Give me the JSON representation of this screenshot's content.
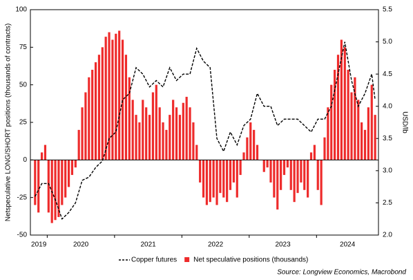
{
  "chart_data": {
    "type": "bar",
    "y_label": "Netspeculative LONG/SHORT positions (thousands of contracts)",
    "y2_label": "USD/lb",
    "source": "Source: Longview Economics, Macrobond",
    "xlim": [
      2019.75,
      2024.92
    ],
    "xticks": [
      2019,
      2020,
      2021,
      2022,
      2023,
      2024
    ],
    "ylim": [
      -50,
      100
    ],
    "yticks": [
      -50,
      -25,
      0,
      25,
      50,
      75,
      100
    ],
    "y2lim": [
      2.0,
      5.5
    ],
    "y2ticks": [
      {
        "value": 2.0,
        "label": "2.0"
      },
      {
        "value": 2.5,
        "label": "2.5"
      },
      {
        "value": 3.0,
        "label": "3.0"
      },
      {
        "value": 3.5,
        "label": "3.5"
      },
      {
        "value": 4.0,
        "label": "4.0"
      },
      {
        "value": 4.5,
        "label": "4.5"
      },
      {
        "value": 5.0,
        "label": "5.0"
      },
      {
        "value": 5.5,
        "label": "5.5"
      }
    ],
    "grid": false,
    "legend": "bottom",
    "series": [
      {
        "name": "Copper futures",
        "type": "line",
        "axis": "y2",
        "color": "#000000",
        "dashed": true,
        "x": [
          2019.82,
          2019.92,
          2020.02,
          2020.12,
          2020.22,
          2020.32,
          2020.42,
          2020.52,
          2020.62,
          2020.72,
          2020.82,
          2020.92,
          2021.02,
          2021.12,
          2021.22,
          2021.32,
          2021.42,
          2021.52,
          2021.62,
          2021.72,
          2021.82,
          2021.92,
          2022.02,
          2022.12,
          2022.22,
          2022.32,
          2022.42,
          2022.52,
          2022.62,
          2022.72,
          2022.82,
          2022.92,
          2023.02,
          2023.12,
          2023.22,
          2023.32,
          2023.42,
          2023.52,
          2023.62,
          2023.72,
          2023.82,
          2023.92,
          2024.02,
          2024.12,
          2024.22,
          2024.32,
          2024.42,
          2024.52,
          2024.62,
          2024.72,
          2024.82,
          2024.87
        ],
        "values": [
          2.6,
          2.8,
          2.8,
          2.55,
          2.25,
          2.35,
          2.5,
          2.85,
          2.9,
          3.05,
          3.15,
          3.5,
          3.6,
          4.1,
          4.2,
          4.6,
          4.5,
          4.3,
          4.4,
          4.3,
          4.6,
          4.4,
          4.5,
          4.5,
          4.9,
          4.7,
          4.6,
          3.5,
          3.3,
          3.6,
          3.4,
          3.7,
          3.8,
          4.2,
          4.0,
          4.0,
          3.7,
          3.8,
          3.8,
          3.8,
          3.7,
          3.6,
          3.8,
          3.8,
          4.0,
          4.5,
          5.0,
          4.4,
          4.0,
          4.2,
          4.5,
          4.1
        ]
      },
      {
        "name": "Net speculative positions (thousands)",
        "type": "bar",
        "axis": "y",
        "color": "#ee2b2b",
        "x": [
          2019.82,
          2019.87,
          2019.92,
          2019.97,
          2020.02,
          2020.07,
          2020.12,
          2020.17,
          2020.22,
          2020.27,
          2020.32,
          2020.37,
          2020.42,
          2020.47,
          2020.52,
          2020.57,
          2020.62,
          2020.67,
          2020.72,
          2020.77,
          2020.82,
          2020.87,
          2020.92,
          2020.97,
          2021.02,
          2021.07,
          2021.12,
          2021.17,
          2021.22,
          2021.27,
          2021.32,
          2021.37,
          2021.42,
          2021.47,
          2021.52,
          2021.57,
          2021.62,
          2021.67,
          2021.72,
          2021.77,
          2021.82,
          2021.87,
          2021.92,
          2021.97,
          2022.02,
          2022.07,
          2022.12,
          2022.17,
          2022.22,
          2022.27,
          2022.32,
          2022.37,
          2022.42,
          2022.47,
          2022.52,
          2022.57,
          2022.62,
          2022.67,
          2022.72,
          2022.77,
          2022.82,
          2022.87,
          2022.92,
          2022.97,
          2023.02,
          2023.07,
          2023.12,
          2023.17,
          2023.22,
          2023.27,
          2023.32,
          2023.37,
          2023.42,
          2023.47,
          2023.52,
          2023.57,
          2023.62,
          2023.67,
          2023.72,
          2023.77,
          2023.82,
          2023.87,
          2023.92,
          2023.97,
          2024.02,
          2024.07,
          2024.12,
          2024.17,
          2024.22,
          2024.27,
          2024.32,
          2024.37,
          2024.42,
          2024.47,
          2024.52,
          2024.57,
          2024.62,
          2024.67,
          2024.72,
          2024.77,
          2024.82,
          2024.87
        ],
        "values": [
          -30,
          -35,
          5,
          10,
          -35,
          -42,
          -40,
          -38,
          -30,
          -25,
          -18,
          -10,
          -5,
          20,
          35,
          45,
          55,
          60,
          65,
          70,
          75,
          82,
          85,
          80,
          84,
          86,
          80,
          70,
          55,
          40,
          30,
          25,
          40,
          35,
          30,
          45,
          50,
          35,
          25,
          20,
          30,
          40,
          35,
          30,
          38,
          42,
          35,
          25,
          10,
          -15,
          -25,
          -30,
          -28,
          -25,
          -30,
          -22,
          -25,
          -28,
          -20,
          -15,
          -25,
          -10,
          5,
          15,
          25,
          20,
          10,
          0,
          -8,
          -5,
          -15,
          -25,
          -33,
          -20,
          -10,
          -5,
          -20,
          -28,
          -22,
          -15,
          -20,
          -25,
          5,
          10,
          -20,
          -30,
          15,
          35,
          50,
          60,
          70,
          80,
          75,
          60,
          45,
          55,
          40,
          25,
          20,
          35,
          50,
          30
        ]
      }
    ]
  }
}
